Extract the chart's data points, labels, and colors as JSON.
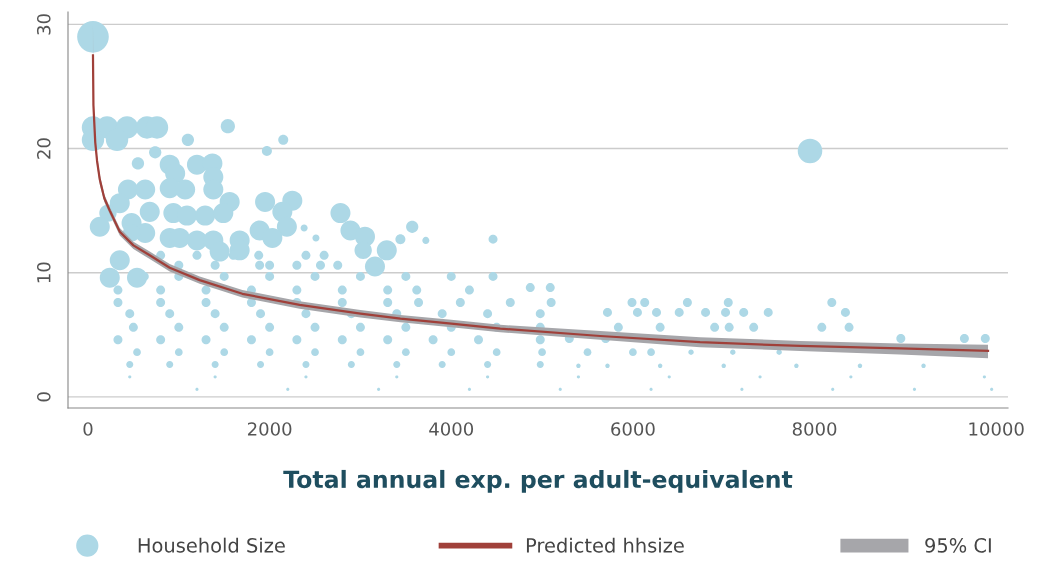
{
  "chart_data": {
    "type": "bubble",
    "annotations": [
      "95% CI"
    ],
    "xlabel": "Total annual exp. per adult-equivalent",
    "xlim": [
      -220,
      10130
    ],
    "ylim": [
      -0.9,
      31
    ],
    "xticks": [
      0,
      2000,
      4000,
      6000,
      8000,
      10000
    ],
    "yticks": [
      0,
      10,
      20,
      30
    ],
    "grid": "y",
    "legend": "bottom",
    "marker": "circle",
    "series": [
      {
        "name": "Household Size",
        "color": "#add8e6",
        "x": [
          55,
          55,
          210,
          430,
          650,
          760,
          55,
          320,
          1540,
          1100,
          2150,
          1970,
          740,
          550,
          900,
          1200,
          1370,
          960,
          1380,
          900,
          1070,
          1380,
          440,
          630,
          350,
          1560,
          1950,
          2250,
          680,
          940,
          1090,
          1290,
          1490,
          2140,
          2780,
          220,
          130,
          480,
          2190,
          2890,
          3050,
          3290,
          3030,
          3570,
          3440,
          3720,
          4460,
          630,
          900,
          1010,
          1200,
          1380,
          1670,
          1890,
          2030,
          480,
          1450,
          1670,
          350,
          240,
          540,
          3160,
          2380,
          2510,
          7950,
          800,
          1200,
          1600,
          1880,
          2400,
          2600,
          1000,
          1400,
          1890,
          2000,
          2300,
          2560,
          2750,
          620,
          1000,
          1500,
          2000,
          2500,
          3000,
          3500,
          4000,
          4460,
          330,
          800,
          1300,
          1800,
          2300,
          2800,
          3300,
          3620,
          4200,
          4870,
          5090,
          330,
          800,
          1300,
          1800,
          2300,
          2800,
          3300,
          3640,
          4100,
          4650,
          5100,
          5990,
          6130,
          6600,
          7050,
          8190,
          460,
          900,
          1400,
          1900,
          2400,
          2900,
          3400,
          3900,
          4400,
          4980,
          5720,
          6050,
          6260,
          6510,
          6800,
          7020,
          7220,
          7490,
          8340,
          500,
          1000,
          1500,
          2000,
          2500,
          3000,
          3500,
          4000,
          4500,
          4980,
          5840,
          6300,
          6900,
          7060,
          7330,
          8080,
          8380,
          330,
          800,
          1300,
          1800,
          2300,
          2800,
          3300,
          3800,
          4300,
          4980,
          5300,
          5700,
          8950,
          9650,
          9880,
          540,
          1000,
          1500,
          2000,
          2500,
          3000,
          3500,
          4000,
          4500,
          5000,
          5500,
          6000,
          6200,
          6640,
          7100,
          7610,
          460,
          900,
          1400,
          1900,
          2400,
          2900,
          3400,
          3900,
          4400,
          4980,
          5400,
          5720,
          6300,
          7000,
          7800,
          8500,
          9200,
          460,
          1400,
          2400,
          3400,
          4400,
          5400,
          6400,
          7400,
          8400,
          9870,
          1200,
          2200,
          3200,
          4200,
          5200,
          6200,
          7200,
          8200,
          9100,
          9950
        ],
        "values": [
          29.0,
          21.7,
          21.7,
          21.7,
          21.7,
          21.7,
          20.7,
          20.7,
          21.8,
          20.7,
          20.7,
          19.8,
          19.7,
          18.8,
          18.7,
          18.7,
          18.8,
          18.0,
          17.7,
          16.8,
          16.7,
          16.7,
          16.7,
          16.7,
          15.6,
          15.7,
          15.7,
          15.8,
          14.9,
          14.8,
          14.6,
          14.6,
          14.8,
          14.9,
          14.8,
          14.8,
          13.7,
          14.0,
          13.7,
          13.4,
          12.9,
          11.8,
          11.8,
          13.7,
          12.7,
          12.6,
          12.7,
          13.2,
          12.8,
          12.8,
          12.6,
          12.6,
          12.6,
          13.4,
          12.8,
          13.2,
          11.7,
          11.8,
          11.0,
          9.6,
          9.6,
          10.5,
          13.6,
          12.8,
          19.8,
          11.4,
          11.4,
          11.4,
          11.4,
          11.4,
          11.4,
          10.6,
          10.6,
          10.6,
          10.6,
          10.6,
          10.6,
          10.6,
          9.7,
          9.7,
          9.7,
          9.7,
          9.7,
          9.7,
          9.7,
          9.7,
          9.7,
          8.6,
          8.6,
          8.6,
          8.6,
          8.6,
          8.6,
          8.6,
          8.6,
          8.6,
          8.8,
          8.8,
          7.6,
          7.6,
          7.6,
          7.6,
          7.6,
          7.6,
          7.6,
          7.6,
          7.6,
          7.6,
          7.6,
          7.6,
          7.6,
          7.6,
          7.6,
          7.6,
          6.7,
          6.7,
          6.7,
          6.7,
          6.7,
          6.7,
          6.7,
          6.7,
          6.7,
          6.7,
          6.8,
          6.8,
          6.8,
          6.8,
          6.8,
          6.8,
          6.8,
          6.8,
          6.8,
          5.6,
          5.6,
          5.6,
          5.6,
          5.6,
          5.6,
          5.6,
          5.6,
          5.6,
          5.6,
          5.6,
          5.6,
          5.6,
          5.6,
          5.6,
          5.6,
          5.6,
          4.6,
          4.6,
          4.6,
          4.6,
          4.6,
          4.6,
          4.6,
          4.6,
          4.6,
          4.6,
          4.7,
          4.7,
          4.7,
          4.7,
          4.7,
          3.6,
          3.6,
          3.6,
          3.6,
          3.6,
          3.6,
          3.6,
          3.6,
          3.6,
          3.6,
          3.6,
          3.6,
          3.6,
          3.6,
          3.6,
          3.6,
          2.6,
          2.6,
          2.6,
          2.6,
          2.6,
          2.6,
          2.6,
          2.6,
          2.6,
          2.6,
          2.5,
          2.5,
          2.5,
          2.5,
          2.5,
          2.5,
          2.5,
          1.6,
          1.6,
          1.6,
          1.6,
          1.6,
          1.6,
          1.6,
          1.6,
          1.6,
          1.6,
          0.6,
          0.6,
          0.6,
          0.6,
          0.6,
          0.6,
          0.6,
          0.6,
          0.6,
          0.6
        ],
        "sizes": [
          1,
          0.5,
          0.5,
          0.5,
          0.5,
          0.5,
          0.5,
          0.5,
          0.2,
          0.15,
          0.1,
          0.1,
          0.15,
          0.15,
          0.4,
          0.4,
          0.4,
          0.4,
          0.4,
          0.4,
          0.4,
          0.4,
          0.4,
          0.4,
          0.4,
          0.4,
          0.4,
          0.4,
          0.4,
          0.4,
          0.4,
          0.4,
          0.4,
          0.4,
          0.4,
          0.3,
          0.4,
          0.4,
          0.4,
          0.4,
          0.4,
          0.4,
          0.3,
          0.15,
          0.1,
          0.05,
          0.08,
          0.4,
          0.4,
          0.4,
          0.4,
          0.4,
          0.4,
          0.4,
          0.4,
          0.3,
          0.4,
          0.4,
          0.4,
          0.4,
          0.4,
          0.4,
          0.05,
          0.05,
          0.6,
          0.08,
          0.08,
          0.08,
          0.08,
          0.08,
          0.08,
          0.08,
          0.08,
          0.08,
          0.08,
          0.08,
          0.08,
          0.08,
          0.08,
          0.08,
          0.08,
          0.08,
          0.08,
          0.08,
          0.08,
          0.08,
          0.08,
          0.08,
          0.08,
          0.08,
          0.08,
          0.08,
          0.08,
          0.08,
          0.08,
          0.08,
          0.08,
          0.08,
          0.08,
          0.08,
          0.08,
          0.08,
          0.08,
          0.08,
          0.08,
          0.08,
          0.08,
          0.08,
          0.08,
          0.08,
          0.08,
          0.08,
          0.08,
          0.08,
          0.08,
          0.08,
          0.08,
          0.08,
          0.08,
          0.08,
          0.08,
          0.08,
          0.08,
          0.08,
          0.08,
          0.08,
          0.08,
          0.08,
          0.08,
          0.08,
          0.08,
          0.08,
          0.08,
          0.08,
          0.08,
          0.08,
          0.08,
          0.08,
          0.08,
          0.08,
          0.08,
          0.08,
          0.08,
          0.08,
          0.08,
          0.08,
          0.08,
          0.08,
          0.08,
          0.08,
          0.08,
          0.08,
          0.08,
          0.08,
          0.08,
          0.08,
          0.08,
          0.08,
          0.08,
          0.08,
          0.08,
          0.08,
          0.08,
          0.08,
          0.08,
          0.06,
          0.06,
          0.06,
          0.06,
          0.06,
          0.06,
          0.06,
          0.06,
          0.06,
          0.06,
          0.06,
          0.06,
          0.06,
          0.03,
          0.03,
          0.03,
          0.05,
          0.05,
          0.05,
          0.05,
          0.05,
          0.05,
          0.05,
          0.05,
          0.05,
          0.05,
          0.02,
          0.02,
          0.02,
          0.02,
          0.02,
          0.02,
          0.02,
          0.01,
          0.01,
          0.01,
          0.01,
          0.01,
          0.01,
          0.01,
          0.01,
          0.01,
          0.01,
          0.01,
          0.01,
          0.01,
          0.01,
          0.01,
          0.01,
          0.01,
          0.01,
          0.01,
          0.01
        ]
      },
      {
        "name": "Predicted hhsize",
        "type": "line",
        "color": "#a0403a",
        "line_style": "solid",
        "marker": "none",
        "x": [
          55,
          60,
          80,
          100,
          130,
          180,
          240,
          350,
          500,
          680,
          900,
          1230,
          1700,
          2330,
          3000,
          3440,
          4000,
          4540,
          5640,
          6740,
          7840,
          8940,
          9910
        ],
        "values": [
          27.5,
          23.5,
          20.5,
          19,
          17.5,
          16,
          15,
          13.3,
          12.2,
          11.4,
          10.4,
          9.4,
          8.3,
          7.4,
          6.7,
          6.3,
          5.9,
          5.5,
          4.9,
          4.4,
          4.1,
          3.9,
          3.7
        ],
        "lower": [
          26.8,
          23.0,
          20.1,
          18.6,
          17.1,
          15.7,
          14.7,
          13.0,
          11.9,
          11.1,
          10.1,
          9.1,
          8.0,
          7.1,
          6.4,
          6.0,
          5.6,
          5.2,
          4.6,
          4.0,
          3.7,
          3.4,
          3.1
        ],
        "upper": [
          30.0,
          24.0,
          21.0,
          19.4,
          17.9,
          16.3,
          15.3,
          13.6,
          12.5,
          11.7,
          10.7,
          9.7,
          8.6,
          7.7,
          7.0,
          6.6,
          6.2,
          5.8,
          5.3,
          4.8,
          4.5,
          4.3,
          4.2
        ]
      }
    ]
  }
}
